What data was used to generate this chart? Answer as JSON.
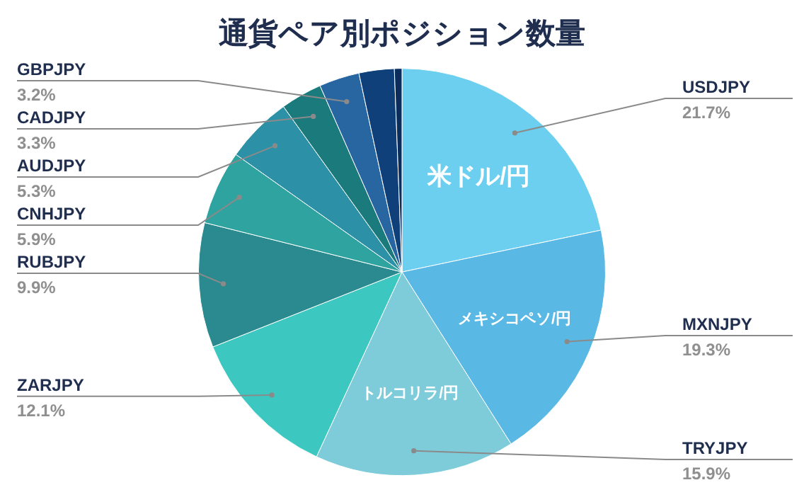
{
  "chart_data": {
    "type": "pie",
    "title": "通貨ペア別ポジション数量",
    "categories": [
      "USDJPY",
      "MXNJPY",
      "TRYJPY",
      "ZARJPY",
      "RUBJPY",
      "CNHJPY",
      "AUDJPY",
      "CADJPY",
      "GBPJPY",
      null,
      null
    ],
    "values": [
      21.7,
      19.3,
      15.9,
      12.1,
      9.9,
      5.9,
      5.3,
      3.3,
      3.2,
      2.8,
      0.6
    ],
    "value_labels": [
      "21.7%",
      "19.3%",
      "15.9%",
      "12.1%",
      "9.9%",
      "5.9%",
      "5.3%",
      "3.3%",
      "3.2%",
      null,
      null
    ],
    "colors": [
      "#6dcff0",
      "#5ab8e4",
      "#7ecbd9",
      "#3cc8c0",
      "#2a8a8f",
      "#2fa3a0",
      "#2c91a6",
      "#1a7a7c",
      "#2766a0",
      "#10407a",
      "#0b2d5c"
    ],
    "annotations": [
      {
        "text": "米ドル/円",
        "x": "USDJPY"
      },
      {
        "text": "メキシコペソ/円",
        "x": "MXNJPY"
      },
      {
        "text": "トルコリラ/円",
        "x": "TRYJPY"
      }
    ],
    "legend": false
  }
}
